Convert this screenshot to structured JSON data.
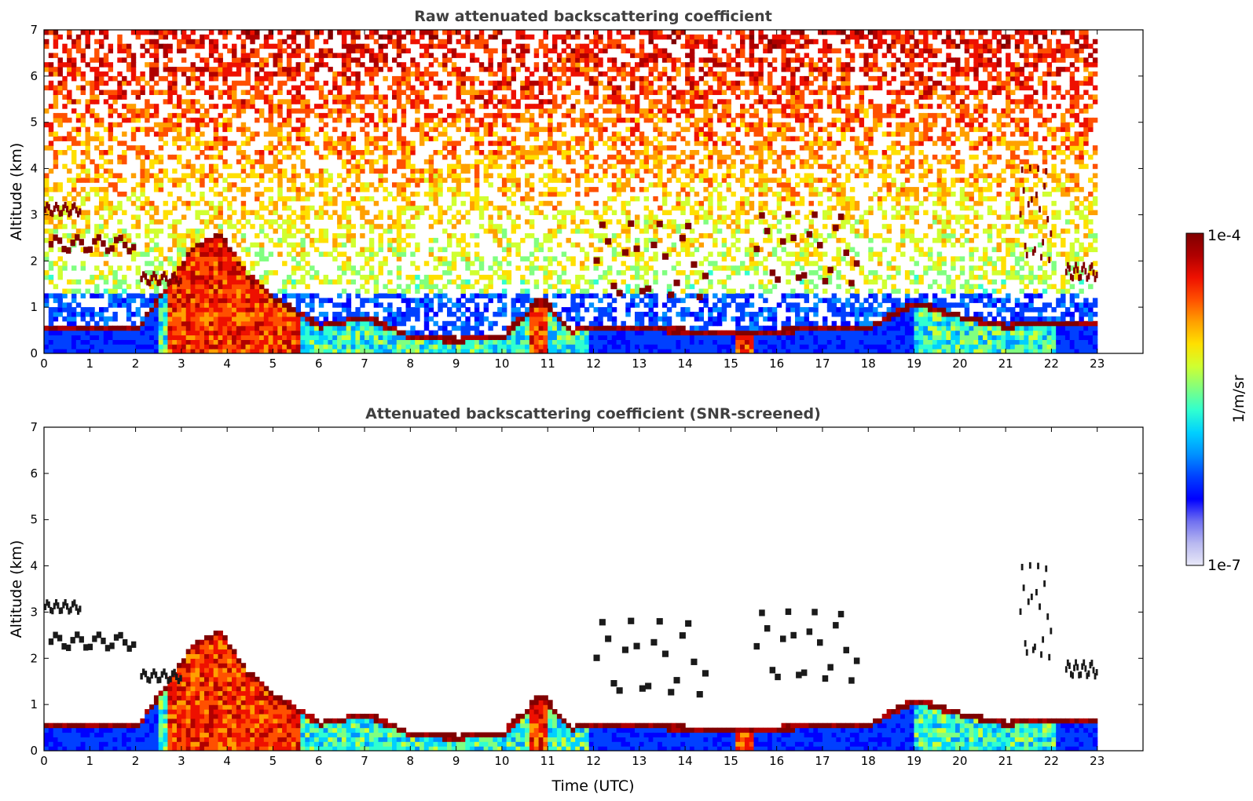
{
  "chart_data": [
    {
      "type": "heatmap",
      "title": "Raw attenuated backscattering coefficient",
      "xlabel": "",
      "ylabel": "Altitude (km)",
      "xlim": [
        0,
        24
      ],
      "ylim": [
        0,
        7
      ],
      "x_ticks": [
        "0",
        "1",
        "2",
        "3",
        "4",
        "5",
        "6",
        "7",
        "8",
        "9",
        "10",
        "11",
        "12",
        "13",
        "14",
        "15",
        "16",
        "17",
        "18",
        "19",
        "20",
        "21",
        "22",
        "23"
      ],
      "y_ticks": [
        "0",
        "1",
        "2",
        "3",
        "4",
        "5",
        "6",
        "7"
      ],
      "data_end_time": 23,
      "features": {
        "boundary_layer_top_km": [
          [
            0,
            0.55
          ],
          [
            2,
            0.55
          ],
          [
            2.6,
            1.4
          ],
          [
            3.2,
            2.3
          ],
          [
            3.8,
            2.6
          ],
          [
            4.4,
            1.7
          ],
          [
            5,
            1.2
          ],
          [
            5.5,
            0.9
          ],
          [
            6,
            0.6
          ],
          [
            7,
            0.8
          ],
          [
            8,
            0.35
          ],
          [
            9,
            0.3
          ],
          [
            10,
            0.4
          ],
          [
            10.8,
            1.2
          ],
          [
            11.5,
            0.5
          ],
          [
            12,
            0.6
          ],
          [
            14,
            0.5
          ],
          [
            16,
            0.5
          ],
          [
            18,
            0.6
          ],
          [
            19,
            1.1
          ],
          [
            20,
            0.8
          ],
          [
            21,
            0.6
          ],
          [
            22,
            0.7
          ],
          [
            23,
            0.7
          ]
        ],
        "cloud_layers": [
          {
            "x": [
              0,
              0.8
            ],
            "y": [
              3.0,
              3.2
            ]
          },
          {
            "x": [
              0.1,
              2.0
            ],
            "y": [
              2.2,
              2.5
            ]
          },
          {
            "x": [
              2.1,
              3.0
            ],
            "y": [
              1.5,
              1.7
            ]
          },
          {
            "x": [
              12.0,
              14.5
            ],
            "y": [
              1.2,
              2.8
            ]
          },
          {
            "x": [
              15.5,
              17.8
            ],
            "y": [
              1.5,
              3.0
            ]
          },
          {
            "x": [
              21.3,
              22.0
            ],
            "y": [
              2.0,
              4.0
            ]
          },
          {
            "x": [
              22.3,
              23.0
            ],
            "y": [
              1.6,
              1.9
            ]
          }
        ]
      }
    },
    {
      "type": "heatmap",
      "title": "Attenuated backscattering coefficient (SNR-screened)",
      "xlabel": "Time (UTC)",
      "ylabel": "Altitude (km)",
      "xlim": [
        0,
        24
      ],
      "ylim": [
        0,
        7
      ],
      "x_ticks": [
        "0",
        "1",
        "2",
        "3",
        "4",
        "5",
        "6",
        "7",
        "8",
        "9",
        "10",
        "11",
        "12",
        "13",
        "14",
        "15",
        "16",
        "17",
        "18",
        "19",
        "20",
        "21",
        "22",
        "23"
      ],
      "y_ticks": [
        "0",
        "1",
        "2",
        "3",
        "4",
        "5",
        "6",
        "7"
      ],
      "data_end_time": 23
    }
  ],
  "colorbar": {
    "label": "1/m/sr",
    "max_label": "1e-4",
    "min_label": "1e-7",
    "colormap": "jet",
    "colors": [
      "#e8e8f8",
      "#b8b8f0",
      "#7070f0",
      "#0000ff",
      "#0040ff",
      "#0090ff",
      "#00d0ff",
      "#30ffd0",
      "#80ff80",
      "#d0ff30",
      "#ffe000",
      "#ffa000",
      "#ff5000",
      "#ee1000",
      "#b00000",
      "#800000"
    ]
  }
}
